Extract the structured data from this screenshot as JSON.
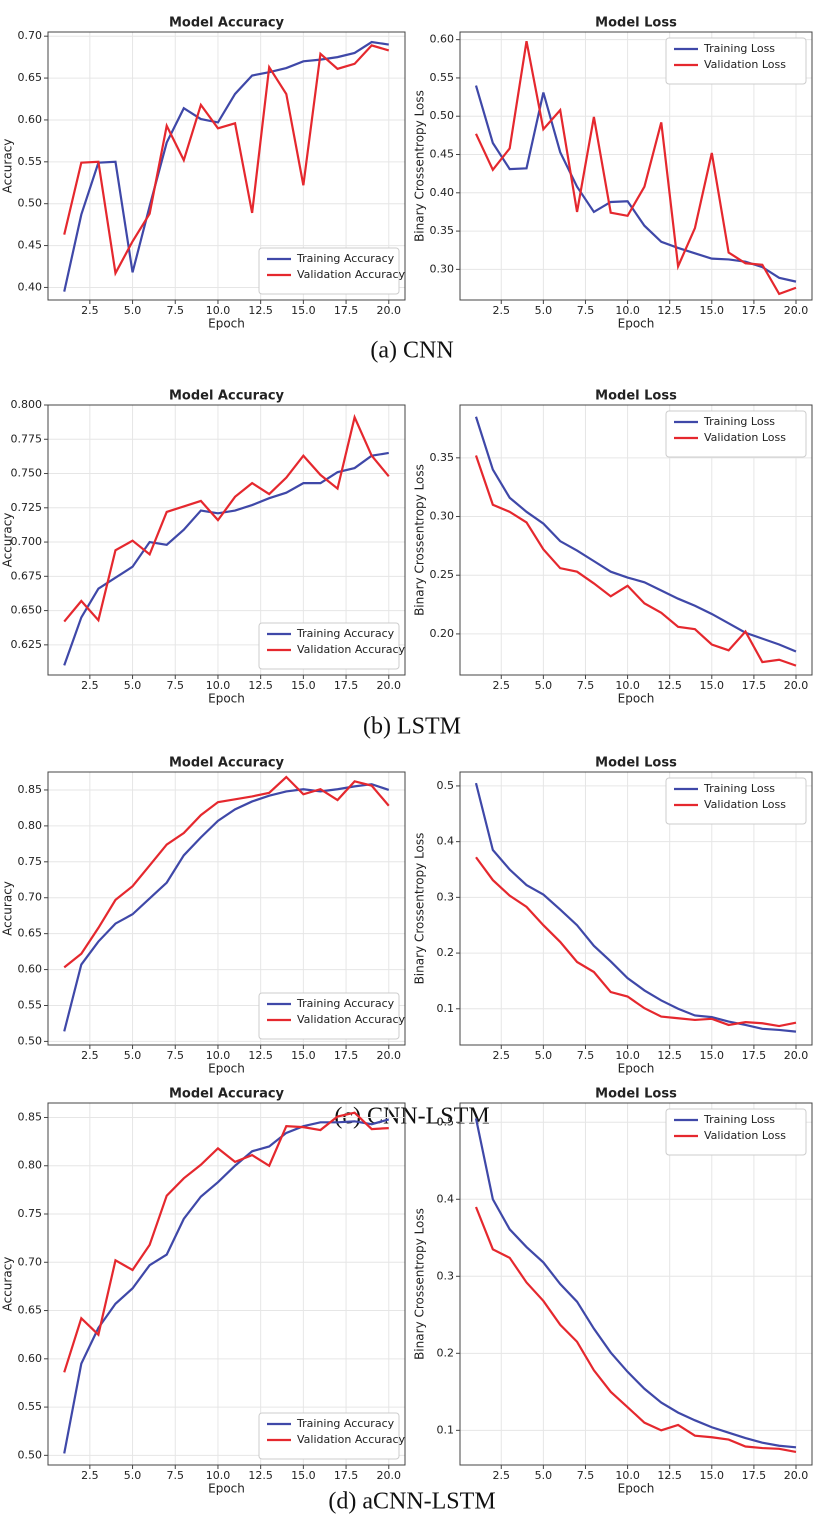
{
  "captions": [
    "(a) CNN",
    "(b) LSTM",
    "(c) CNN-LSTM",
    "(d) aCNN-LSTM"
  ],
  "chart_data": [
    {
      "type": "line",
      "title": "Model Accuracy",
      "x_label": "Epoch",
      "y_label": "Accuracy",
      "grid": true,
      "legend": "lower right",
      "x": [
        1,
        2,
        3,
        4,
        5,
        6,
        7,
        8,
        9,
        10,
        11,
        12,
        13,
        14,
        15,
        16,
        17,
        18,
        19,
        20
      ],
      "xlim": [
        0.05,
        20.95
      ],
      "xticks": [
        2.5,
        {
          "value": 5,
          "label": "5.0"
        },
        7.5,
        {
          "value": 10,
          "label": "10.0"
        },
        12.5,
        {
          "value": 15,
          "label": "15.0"
        },
        17.5,
        {
          "value": 20,
          "label": "20.0"
        }
      ],
      "ylim": [
        0.385,
        0.705
      ],
      "yticks": [
        {
          "value": 0.4,
          "label": "0.40"
        },
        0.45,
        {
          "value": 0.5,
          "label": "0.50"
        },
        0.55,
        {
          "value": 0.6,
          "label": "0.60"
        },
        0.65,
        {
          "value": 0.7,
          "label": "0.70"
        }
      ],
      "series": [
        {
          "name": "Training Accuracy",
          "color": "#3f48a8",
          "values": [
            0.395,
            0.487,
            0.549,
            0.55,
            0.418,
            0.497,
            0.573,
            0.614,
            0.601,
            0.597,
            0.631,
            0.653,
            0.657,
            0.662,
            0.67,
            0.672,
            0.675,
            0.68,
            0.693,
            0.69
          ]
        },
        {
          "name": "Validation Accuracy",
          "color": "#e5282e",
          "values": [
            0.463,
            0.549,
            0.55,
            0.417,
            0.455,
            0.488,
            0.593,
            0.552,
            0.618,
            0.59,
            0.596,
            0.489,
            0.663,
            0.631,
            0.522,
            0.679,
            0.661,
            0.667,
            0.689,
            0.683
          ]
        }
      ]
    },
    {
      "type": "line",
      "title": "Model Loss",
      "x_label": "Epoch",
      "y_label": "Binary Crossentropy Loss",
      "grid": true,
      "legend": "upper right",
      "x": [
        1,
        2,
        3,
        4,
        5,
        6,
        7,
        8,
        9,
        10,
        11,
        12,
        13,
        14,
        15,
        16,
        17,
        18,
        19,
        20
      ],
      "xlim": [
        0.05,
        20.95
      ],
      "xticks": [
        2.5,
        {
          "value": 5,
          "label": "5.0"
        },
        7.5,
        {
          "value": 10,
          "label": "10.0"
        },
        12.5,
        {
          "value": 15,
          "label": "15.0"
        },
        17.5,
        {
          "value": 20,
          "label": "20.0"
        }
      ],
      "ylim": [
        0.26,
        0.61
      ],
      "yticks": [
        {
          "value": 0.3,
          "label": "0.30"
        },
        0.35,
        {
          "value": 0.4,
          "label": "0.40"
        },
        0.45,
        {
          "value": 0.5,
          "label": "0.50"
        },
        0.55,
        {
          "value": 0.6,
          "label": "0.60"
        }
      ],
      "series": [
        {
          "name": "Training Loss",
          "color": "#3f48a8",
          "values": [
            0.54,
            0.465,
            0.431,
            0.432,
            0.531,
            0.453,
            0.408,
            0.375,
            0.388,
            0.389,
            0.357,
            0.336,
            0.328,
            0.321,
            0.314,
            0.313,
            0.31,
            0.303,
            0.289,
            0.284
          ]
        },
        {
          "name": "Validation Loss",
          "color": "#e5282e",
          "values": [
            0.477,
            0.43,
            0.458,
            0.598,
            0.483,
            0.508,
            0.375,
            0.499,
            0.374,
            0.37,
            0.408,
            0.492,
            0.304,
            0.354,
            0.452,
            0.322,
            0.308,
            0.306,
            0.268,
            0.276
          ]
        }
      ]
    },
    {
      "type": "line",
      "title": "Model Accuracy",
      "x_label": "Epoch",
      "y_label": "Accuracy",
      "grid": true,
      "legend": "lower right",
      "x": [
        1,
        2,
        3,
        4,
        5,
        6,
        7,
        8,
        9,
        10,
        11,
        12,
        13,
        14,
        15,
        16,
        17,
        18,
        19,
        20
      ],
      "xlim": [
        0.05,
        20.95
      ],
      "xticks": [
        2.5,
        {
          "value": 5,
          "label": "5.0"
        },
        7.5,
        {
          "value": 10,
          "label": "10.0"
        },
        12.5,
        {
          "value": 15,
          "label": "15.0"
        },
        17.5,
        {
          "value": 20,
          "label": "20.0"
        }
      ],
      "ylim": [
        0.603,
        0.8
      ],
      "yticks": [
        0.625,
        {
          "value": 0.65,
          "label": "0.650"
        },
        0.675,
        {
          "value": 0.7,
          "label": "0.700"
        },
        0.725,
        {
          "value": 0.75,
          "label": "0.750"
        },
        0.775,
        {
          "value": 0.8,
          "label": "0.800"
        }
      ],
      "series": [
        {
          "name": "Training Accuracy",
          "color": "#3f48a8",
          "values": [
            0.61,
            0.645,
            0.666,
            0.674,
            0.682,
            0.7,
            0.698,
            0.709,
            0.723,
            0.721,
            0.723,
            0.727,
            0.732,
            0.736,
            0.743,
            0.743,
            0.751,
            0.754,
            0.763,
            0.765
          ]
        },
        {
          "name": "Validation Accuracy",
          "color": "#e5282e",
          "values": [
            0.642,
            0.657,
            0.643,
            0.694,
            0.701,
            0.691,
            0.722,
            0.726,
            0.73,
            0.716,
            0.733,
            0.743,
            0.735,
            0.747,
            0.763,
            0.749,
            0.739,
            0.791,
            0.763,
            0.748
          ]
        }
      ]
    },
    {
      "type": "line",
      "title": "Model Loss",
      "x_label": "Epoch",
      "y_label": "Binary Crossentropy Loss",
      "grid": true,
      "legend": "upper right",
      "x": [
        1,
        2,
        3,
        4,
        5,
        6,
        7,
        8,
        9,
        10,
        11,
        12,
        13,
        14,
        15,
        16,
        17,
        18,
        19,
        20
      ],
      "xlim": [
        0.05,
        20.95
      ],
      "xticks": [
        2.5,
        {
          "value": 5,
          "label": "5.0"
        },
        7.5,
        {
          "value": 10,
          "label": "10.0"
        },
        12.5,
        {
          "value": 15,
          "label": "15.0"
        },
        17.5,
        {
          "value": 20,
          "label": "20.0"
        }
      ],
      "ylim": [
        0.165,
        0.395
      ],
      "yticks": [
        {
          "value": 0.2,
          "label": "0.20"
        },
        0.25,
        {
          "value": 0.3,
          "label": "0.30"
        },
        0.35
      ],
      "series": [
        {
          "name": "Training Loss",
          "color": "#3f48a8",
          "values": [
            0.385,
            0.34,
            0.316,
            0.304,
            0.294,
            0.279,
            0.271,
            0.262,
            0.253,
            0.248,
            0.244,
            0.237,
            0.23,
            0.224,
            0.217,
            0.209,
            0.201,
            0.196,
            0.191,
            0.185
          ]
        },
        {
          "name": "Validation Loss",
          "color": "#e5282e",
          "values": [
            0.352,
            0.31,
            0.304,
            0.295,
            0.272,
            0.256,
            0.253,
            0.243,
            0.232,
            0.241,
            0.226,
            0.218,
            0.206,
            0.204,
            0.191,
            0.186,
            0.202,
            0.176,
            0.178,
            0.173
          ]
        }
      ]
    },
    {
      "type": "line",
      "title": "Model Accuracy",
      "x_label": "Epoch",
      "y_label": "Accuracy",
      "grid": true,
      "legend": "lower right",
      "x": [
        1,
        2,
        3,
        4,
        5,
        6,
        7,
        8,
        9,
        10,
        11,
        12,
        13,
        14,
        15,
        16,
        17,
        18,
        19,
        20
      ],
      "xlim": [
        0.05,
        20.95
      ],
      "xticks": [
        2.5,
        {
          "value": 5,
          "label": "5.0"
        },
        7.5,
        {
          "value": 10,
          "label": "10.0"
        },
        12.5,
        {
          "value": 15,
          "label": "15.0"
        },
        17.5,
        {
          "value": 20,
          "label": "20.0"
        }
      ],
      "ylim": [
        0.495,
        0.875
      ],
      "yticks": [
        {
          "value": 0.5,
          "label": "0.50"
        },
        0.55,
        {
          "value": 0.6,
          "label": "0.60"
        },
        0.65,
        {
          "value": 0.7,
          "label": "0.70"
        },
        0.75,
        {
          "value": 0.8,
          "label": "0.80"
        },
        0.85
      ],
      "series": [
        {
          "name": "Training Accuracy",
          "color": "#3f48a8",
          "values": [
            0.514,
            0.607,
            0.639,
            0.664,
            0.677,
            0.699,
            0.721,
            0.759,
            0.784,
            0.807,
            0.823,
            0.834,
            0.842,
            0.848,
            0.851,
            0.848,
            0.851,
            0.855,
            0.858,
            0.85
          ]
        },
        {
          "name": "Validation Accuracy",
          "color": "#e5282e",
          "values": [
            0.603,
            0.622,
            0.658,
            0.697,
            0.716,
            0.745,
            0.774,
            0.79,
            0.815,
            0.833,
            0.837,
            0.841,
            0.846,
            0.868,
            0.844,
            0.851,
            0.836,
            0.862,
            0.856,
            0.828
          ]
        }
      ]
    },
    {
      "type": "line",
      "title": "Model Loss",
      "x_label": "Epoch",
      "y_label": "Binary Crossentropy Loss",
      "grid": true,
      "legend": "upper right",
      "x": [
        1,
        2,
        3,
        4,
        5,
        6,
        7,
        8,
        9,
        10,
        11,
        12,
        13,
        14,
        15,
        16,
        17,
        18,
        19,
        20
      ],
      "xlim": [
        0.05,
        20.95
      ],
      "xticks": [
        2.5,
        {
          "value": 5,
          "label": "5.0"
        },
        7.5,
        {
          "value": 10,
          "label": "10.0"
        },
        12.5,
        {
          "value": 15,
          "label": "15.0"
        },
        17.5,
        {
          "value": 20,
          "label": "20.0"
        }
      ],
      "ylim": [
        0.035,
        0.525
      ],
      "yticks": [
        0.1,
        0.2,
        0.3,
        0.4,
        0.5
      ],
      "series": [
        {
          "name": "Training Loss",
          "color": "#3f48a8",
          "values": [
            0.505,
            0.385,
            0.35,
            0.322,
            0.305,
            0.278,
            0.25,
            0.213,
            0.185,
            0.155,
            0.133,
            0.115,
            0.1,
            0.088,
            0.085,
            0.077,
            0.071,
            0.064,
            0.062,
            0.059
          ]
        },
        {
          "name": "Validation Loss",
          "color": "#e5282e",
          "values": [
            0.372,
            0.331,
            0.303,
            0.283,
            0.25,
            0.22,
            0.184,
            0.166,
            0.13,
            0.122,
            0.101,
            0.086,
            0.083,
            0.08,
            0.082,
            0.071,
            0.076,
            0.074,
            0.069,
            0.075
          ]
        }
      ]
    },
    {
      "type": "line",
      "title": "Model Accuracy",
      "x_label": "Epoch",
      "y_label": "Accuracy",
      "grid": true,
      "legend": "lower right",
      "x": [
        1,
        2,
        3,
        4,
        5,
        6,
        7,
        8,
        9,
        10,
        11,
        12,
        13,
        14,
        15,
        16,
        17,
        18,
        19,
        20
      ],
      "xlim": [
        0.05,
        20.95
      ],
      "xticks": [
        2.5,
        {
          "value": 5,
          "label": "5.0"
        },
        7.5,
        {
          "value": 10,
          "label": "10.0"
        },
        12.5,
        {
          "value": 15,
          "label": "15.0"
        },
        17.5,
        {
          "value": 20,
          "label": "20.0"
        }
      ],
      "ylim": [
        0.49,
        0.865
      ],
      "yticks": [
        {
          "value": 0.5,
          "label": "0.50"
        },
        0.55,
        {
          "value": 0.6,
          "label": "0.60"
        },
        0.65,
        {
          "value": 0.7,
          "label": "0.70"
        },
        0.75,
        {
          "value": 0.8,
          "label": "0.80"
        },
        0.85
      ],
      "series": [
        {
          "name": "Training Accuracy",
          "color": "#3f48a8",
          "values": [
            0.502,
            0.595,
            0.632,
            0.657,
            0.673,
            0.697,
            0.708,
            0.745,
            0.768,
            0.783,
            0.8,
            0.815,
            0.82,
            0.834,
            0.841,
            0.845,
            0.845,
            0.846,
            0.843,
            0.848
          ]
        },
        {
          "name": "Validation Accuracy",
          "color": "#e5282e",
          "values": [
            0.586,
            0.642,
            0.625,
            0.702,
            0.692,
            0.718,
            0.769,
            0.787,
            0.801,
            0.818,
            0.804,
            0.811,
            0.8,
            0.841,
            0.84,
            0.837,
            0.851,
            0.855,
            0.838,
            0.839
          ]
        }
      ]
    },
    {
      "type": "line",
      "title": "Model Loss",
      "x_label": "Epoch",
      "y_label": "Binary Crossentropy Loss",
      "grid": true,
      "legend": "upper right",
      "x": [
        1,
        2,
        3,
        4,
        5,
        6,
        7,
        8,
        9,
        10,
        11,
        12,
        13,
        14,
        15,
        16,
        17,
        18,
        19,
        20
      ],
      "xlim": [
        0.05,
        20.95
      ],
      "xticks": [
        2.5,
        {
          "value": 5,
          "label": "5.0"
        },
        7.5,
        {
          "value": 10,
          "label": "10.0"
        },
        12.5,
        {
          "value": 15,
          "label": "15.0"
        },
        17.5,
        {
          "value": 20,
          "label": "20.0"
        }
      ],
      "ylim": [
        0.055,
        0.525
      ],
      "yticks": [
        0.1,
        0.2,
        0.3,
        0.4,
        0.5
      ],
      "series": [
        {
          "name": "Training Loss",
          "color": "#3f48a8",
          "values": [
            0.505,
            0.4,
            0.361,
            0.338,
            0.318,
            0.29,
            0.267,
            0.232,
            0.201,
            0.176,
            0.154,
            0.136,
            0.123,
            0.113,
            0.104,
            0.097,
            0.09,
            0.084,
            0.08,
            0.078
          ]
        },
        {
          "name": "Validation Loss",
          "color": "#e5282e",
          "values": [
            0.39,
            0.335,
            0.324,
            0.292,
            0.268,
            0.237,
            0.215,
            0.178,
            0.15,
            0.13,
            0.11,
            0.1,
            0.107,
            0.093,
            0.091,
            0.088,
            0.079,
            0.077,
            0.076,
            0.072
          ]
        }
      ]
    }
  ]
}
